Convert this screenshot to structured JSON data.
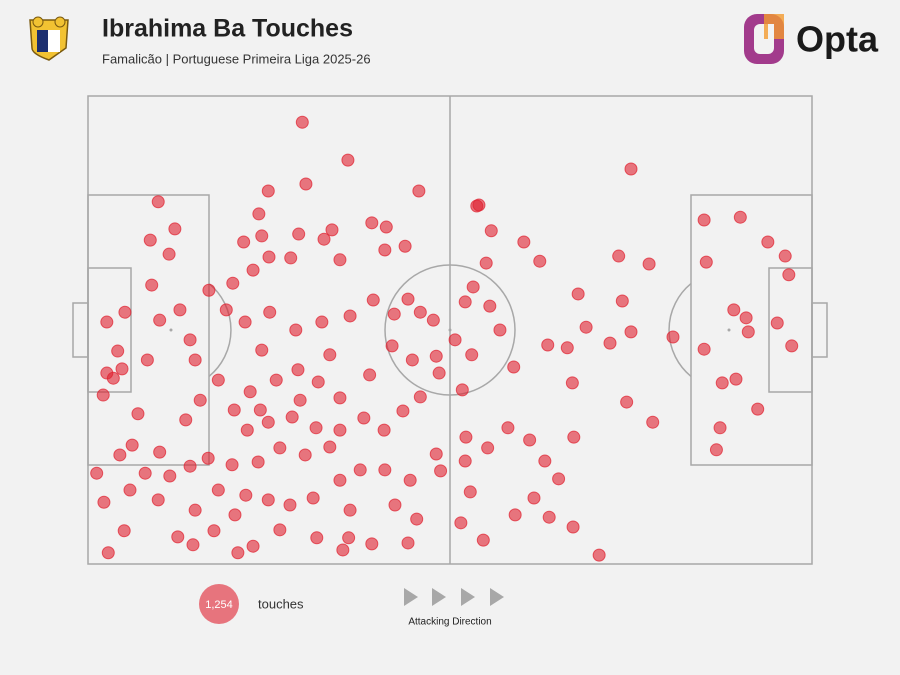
{
  "chart_data": {
    "type": "scatter",
    "title": "Ibrahima Ba Touches",
    "subtitle": "Famalicão | Portuguese Primeira Liga 2025-26",
    "brand": "Opta",
    "total": {
      "value": 1254,
      "label": "1,254"
    },
    "total_caption": "touches",
    "direction_caption": "Attacking Direction",
    "color": "#e0202e",
    "xlim": [
      0,
      100
    ],
    "ylim": [
      0,
      100
    ],
    "x": [
      29.6,
      35.9,
      75.0,
      24.9,
      30.1,
      45.7,
      9.7,
      53.7,
      55.7,
      60.2,
      62.4,
      67.7,
      73.3,
      77.5,
      73.8,
      75.0,
      72.1,
      74.4,
      78.0,
      70.6,
      85.1,
      90.1,
      93.9,
      96.3,
      96.8,
      85.4,
      89.2,
      90.9,
      95.2,
      97.2,
      91.2,
      85.1,
      89.5,
      87.6,
      92.5,
      87.3,
      86.8,
      80.8,
      68.8,
      63.5,
      66.2,
      66.9,
      67.1,
      65.0,
      63.7,
      67.0,
      61.6,
      59.0,
      54.6,
      51.5,
      52.8,
      52.1,
      55.2,
      52.2,
      58.0,
      61.0,
      63.1,
      58.8,
      56.9,
      55.5,
      52.1,
      53.2,
      55.0,
      54.0,
      50.7,
      53.0,
      51.7,
      2.8,
      5.0,
      1.2,
      2.2,
      2.6,
      2.1,
      2.6,
      4.1,
      5.1,
      8.6,
      12.0,
      11.2,
      8.8,
      9.9,
      8.2,
      6.9,
      6.1,
      7.9,
      9.7,
      12.4,
      14.5,
      17.4,
      20.7,
      22.8,
      26.5,
      31.6,
      35.2,
      36.0,
      39.2,
      44.2,
      45.4,
      42.4,
      48.7,
      48.1,
      21.5,
      24.0,
      23.6,
      29.1,
      32.6,
      33.7,
      39.2,
      41.2,
      43.8,
      41.0,
      34.8,
      28.0,
      25.0,
      22.8,
      20.0,
      16.7,
      19.1,
      21.7,
      25.1,
      28.7,
      32.3,
      36.2,
      39.4,
      42.3,
      45.9,
      47.7,
      44.2,
      42.0,
      44.8,
      48.1,
      48.5,
      45.9,
      43.5,
      40.9,
      38.1,
      34.8,
      31.8,
      29.0,
      26.0,
      22.4,
      20.2,
      22.0,
      24.9,
      28.2,
      31.5,
      33.4,
      30.0,
      26.5,
      23.5,
      19.9,
      16.6,
      14.1,
      11.3,
      9.9,
      13.5,
      15.5,
      18.0,
      14.8,
      14.1,
      12.7,
      4.7,
      3.5,
      18.0,
      21.8,
      24.9,
      27.9,
      31.1,
      34.8,
      37.6,
      41.0,
      44.5,
      36.2,
      20.3,
      14.8,
      5.8,
      4.4,
      24.0,
      33.4,
      38.9,
      29.3,
      34.8,
      23.8
    ],
    "y": [
      94.4,
      86.3,
      84.4,
      79.7,
      81.2,
      79.7,
      77.4,
      76.5,
      71.2,
      68.8,
      64.7,
      57.7,
      65.8,
      64.1,
      56.2,
      49.6,
      47.2,
      34.6,
      30.3,
      1.9,
      73.5,
      74.1,
      68.8,
      65.8,
      61.8,
      64.5,
      54.3,
      52.6,
      51.5,
      46.6,
      49.6,
      45.9,
      39.5,
      38.7,
      33.1,
      29.1,
      24.4,
      48.5,
      50.6,
      46.8,
      46.2,
      38.7,
      27.1,
      18.2,
      10.0,
      7.9,
      14.1,
      10.5,
      5.1,
      8.8,
      15.4,
      22.0,
      24.8,
      27.1,
      29.1,
      26.5,
      22.0,
      42.1,
      50.0,
      55.1,
      56.0,
      59.2,
      64.3,
      76.7,
      47.9,
      44.7,
      37.2,
      2.4,
      7.1,
      19.4,
      13.2,
      40.8,
      36.1,
      51.7,
      45.5,
      53.8,
      69.2,
      71.6,
      66.2,
      59.6,
      52.1,
      43.6,
      32.1,
      25.4,
      19.4,
      13.7,
      5.8,
      4.1,
      7.1,
      2.4,
      3.8,
      7.3,
      5.6,
      3.0,
      5.6,
      4.3,
      4.5,
      9.6,
      12.6,
      19.9,
      23.5,
      68.8,
      70.1,
      74.8,
      70.5,
      69.4,
      71.4,
      72.9,
      72.0,
      67.9,
      67.1,
      65.0,
      65.4,
      65.6,
      62.8,
      60.0,
      58.5,
      54.3,
      51.7,
      53.8,
      50.0,
      51.7,
      53.0,
      56.4,
      53.4,
      53.8,
      52.1,
      56.6,
      46.6,
      43.6,
      44.4,
      40.8,
      35.7,
      32.7,
      28.6,
      31.2,
      35.5,
      38.9,
      41.5,
      39.3,
      36.8,
      32.9,
      28.6,
      30.3,
      31.4,
      29.1,
      25.0,
      23.3,
      24.8,
      21.8,
      21.2,
      22.6,
      20.9,
      18.8,
      23.9,
      30.8,
      35.0,
      39.3,
      43.6,
      47.9,
      54.3,
      41.7,
      39.7,
      15.8,
      14.7,
      13.7,
      12.6,
      14.1,
      17.9,
      20.1,
      20.1,
      17.9,
      11.5,
      10.5,
      11.5,
      15.8,
      23.3,
      45.7,
      44.7,
      40.4,
      35.0,
      28.6,
      32.9
    ]
  }
}
